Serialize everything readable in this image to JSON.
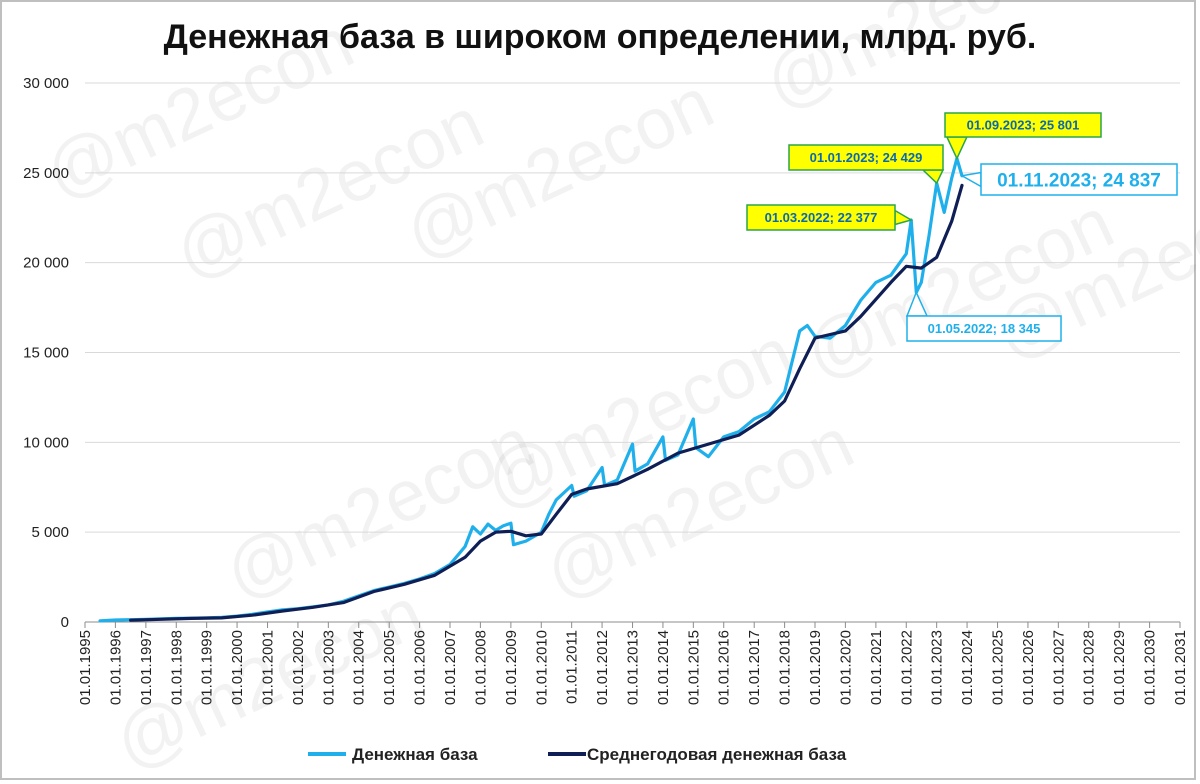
{
  "chart_data": {
    "type": "line",
    "title": "Денежная база в широком определении, млрд. руб.",
    "ylim": [
      0,
      30000
    ],
    "y_ticks": [
      "0",
      "5 000",
      "10 000",
      "15 000",
      "20 000",
      "25 000",
      "30 000"
    ],
    "y_tick_values": [
      0,
      5000,
      10000,
      15000,
      20000,
      25000,
      30000
    ],
    "x_ticks": [
      "01.01.1995",
      "01.01.1996",
      "01.01.1997",
      "01.01.1998",
      "01.01.1999",
      "01.01.2000",
      "01.01.2001",
      "01.01.2002",
      "01.01.2003",
      "01.01.2004",
      "01.01.2005",
      "01.01.2006",
      "01.01.2007",
      "01.01.2008",
      "01.01.2009",
      "01.01.2010",
      "01.01.2011",
      "01.01.2012",
      "01.01.2013",
      "01.01.2014",
      "01.01.2015",
      "01.01.2016",
      "01.01.2017",
      "01.01.2018",
      "01.01.2019",
      "01.01.2020",
      "01.01.2021",
      "01.01.2022",
      "01.01.2023",
      "01.01.2024",
      "01.01.2025",
      "01.01.2026",
      "01.01.2027",
      "01.01.2028",
      "01.01.2029",
      "01.01.2030",
      "01.01.2031"
    ],
    "x_range": [
      "1995-01-01",
      "2031-01-01"
    ],
    "grid": true,
    "legend_position": "bottom",
    "series": [
      {
        "name": "Денежная база",
        "color": "#1fb0ec",
        "points": [
          [
            "1995-07-01",
            60
          ],
          [
            "1996-01-01",
            110
          ],
          [
            "1996-07-01",
            130
          ],
          [
            "1997-01-01",
            150
          ],
          [
            "1997-07-01",
            180
          ],
          [
            "1998-01-01",
            200
          ],
          [
            "1998-07-01",
            210
          ],
          [
            "1999-01-01",
            230
          ],
          [
            "1999-07-01",
            260
          ],
          [
            "2000-01-01",
            330
          ],
          [
            "2000-07-01",
            430
          ],
          [
            "2001-01-01",
            560
          ],
          [
            "2001-07-01",
            680
          ],
          [
            "2002-01-01",
            740
          ],
          [
            "2002-07-01",
            840
          ],
          [
            "2003-01-01",
            950
          ],
          [
            "2003-07-01",
            1150
          ],
          [
            "2004-01-01",
            1450
          ],
          [
            "2004-07-01",
            1750
          ],
          [
            "2005-01-01",
            1950
          ],
          [
            "2005-07-01",
            2150
          ],
          [
            "2006-01-01",
            2400
          ],
          [
            "2006-07-01",
            2700
          ],
          [
            "2007-01-01",
            3200
          ],
          [
            "2007-07-01",
            4200
          ],
          [
            "2007-10-01",
            5300
          ],
          [
            "2008-01-01",
            4900
          ],
          [
            "2008-04-01",
            5450
          ],
          [
            "2008-07-01",
            5100
          ],
          [
            "2008-10-01",
            5350
          ],
          [
            "2009-01-01",
            5500
          ],
          [
            "2009-02-01",
            4300
          ],
          [
            "2009-07-01",
            4500
          ],
          [
            "2010-01-01",
            5000
          ],
          [
            "2010-04-01",
            6000
          ],
          [
            "2010-07-01",
            6800
          ],
          [
            "2011-01-01",
            7600
          ],
          [
            "2011-02-01",
            7000
          ],
          [
            "2011-07-01",
            7300
          ],
          [
            "2012-01-01",
            8600
          ],
          [
            "2012-02-01",
            7600
          ],
          [
            "2012-07-01",
            7900
          ],
          [
            "2013-01-01",
            9900
          ],
          [
            "2013-02-01",
            8400
          ],
          [
            "2013-07-01",
            8800
          ],
          [
            "2014-01-01",
            10300
          ],
          [
            "2014-02-01",
            9000
          ],
          [
            "2014-07-01",
            9300
          ],
          [
            "2015-01-01",
            11300
          ],
          [
            "2015-02-01",
            9700
          ],
          [
            "2015-07-01",
            9200
          ],
          [
            "2016-01-01",
            10300
          ],
          [
            "2016-07-01",
            10600
          ],
          [
            "2017-01-01",
            11300
          ],
          [
            "2017-07-01",
            11700
          ],
          [
            "2018-01-01",
            12800
          ],
          [
            "2018-07-01",
            16200
          ],
          [
            "2018-10-01",
            16500
          ],
          [
            "2019-01-01",
            15900
          ],
          [
            "2019-07-01",
            15800
          ],
          [
            "2020-01-01",
            16500
          ],
          [
            "2020-07-01",
            17900
          ],
          [
            "2021-01-01",
            18900
          ],
          [
            "2021-07-01",
            19300
          ],
          [
            "2022-01-01",
            20500
          ],
          [
            "2022-03-01",
            22377
          ],
          [
            "2022-05-01",
            18345
          ],
          [
            "2022-07-01",
            18900
          ],
          [
            "2022-10-01",
            21500
          ],
          [
            "2023-01-01",
            24429
          ],
          [
            "2023-04-01",
            22800
          ],
          [
            "2023-07-01",
            24700
          ],
          [
            "2023-09-01",
            25801
          ],
          [
            "2023-11-01",
            24837
          ]
        ]
      },
      {
        "name": "Среднегодовая денежная база",
        "color": "#0f1f56",
        "points": [
          [
            "1996-07-01",
            100
          ],
          [
            "1997-07-01",
            150
          ],
          [
            "1998-07-01",
            200
          ],
          [
            "1999-07-01",
            230
          ],
          [
            "2000-07-01",
            380
          ],
          [
            "2001-07-01",
            610
          ],
          [
            "2002-07-01",
            820
          ],
          [
            "2003-07-01",
            1080
          ],
          [
            "2004-07-01",
            1700
          ],
          [
            "2005-07-01",
            2100
          ],
          [
            "2006-07-01",
            2600
          ],
          [
            "2007-07-01",
            3600
          ],
          [
            "2008-01-01",
            4500
          ],
          [
            "2008-07-01",
            5000
          ],
          [
            "2009-01-01",
            5050
          ],
          [
            "2009-07-01",
            4800
          ],
          [
            "2010-01-01",
            4900
          ],
          [
            "2010-07-01",
            6000
          ],
          [
            "2011-01-01",
            7100
          ],
          [
            "2011-07-01",
            7400
          ],
          [
            "2012-07-01",
            7700
          ],
          [
            "2013-07-01",
            8500
          ],
          [
            "2014-07-01",
            9400
          ],
          [
            "2015-07-01",
            9900
          ],
          [
            "2016-07-01",
            10400
          ],
          [
            "2017-07-01",
            11500
          ],
          [
            "2018-01-01",
            12300
          ],
          [
            "2018-07-01",
            14100
          ],
          [
            "2019-01-01",
            15800
          ],
          [
            "2019-07-01",
            16000
          ],
          [
            "2020-01-01",
            16200
          ],
          [
            "2020-07-01",
            17000
          ],
          [
            "2021-07-01",
            18900
          ],
          [
            "2022-01-01",
            19800
          ],
          [
            "2022-07-01",
            19700
          ],
          [
            "2023-01-01",
            20300
          ],
          [
            "2023-07-01",
            22300
          ],
          [
            "2023-11-01",
            24300
          ]
        ]
      }
    ],
    "annotations": [
      {
        "text": "01.03.2022;  22 377",
        "date": "2022-03-01",
        "value": 22377,
        "style": "yellow"
      },
      {
        "text": "01.05.2022;  18 345",
        "date": "2022-05-01",
        "value": 18345,
        "style": "white"
      },
      {
        "text": "01.01.2023;  24 429",
        "date": "2023-01-01",
        "value": 24429,
        "style": "yellow"
      },
      {
        "text": "01.09.2023;  25 801",
        "date": "2023-09-01",
        "value": 25801,
        "style": "yellow"
      },
      {
        "text": "01.11.2023;  24 837",
        "date": "2023-11-01",
        "value": 24837,
        "style": "white-large"
      }
    ],
    "watermark": "@m2econ"
  }
}
